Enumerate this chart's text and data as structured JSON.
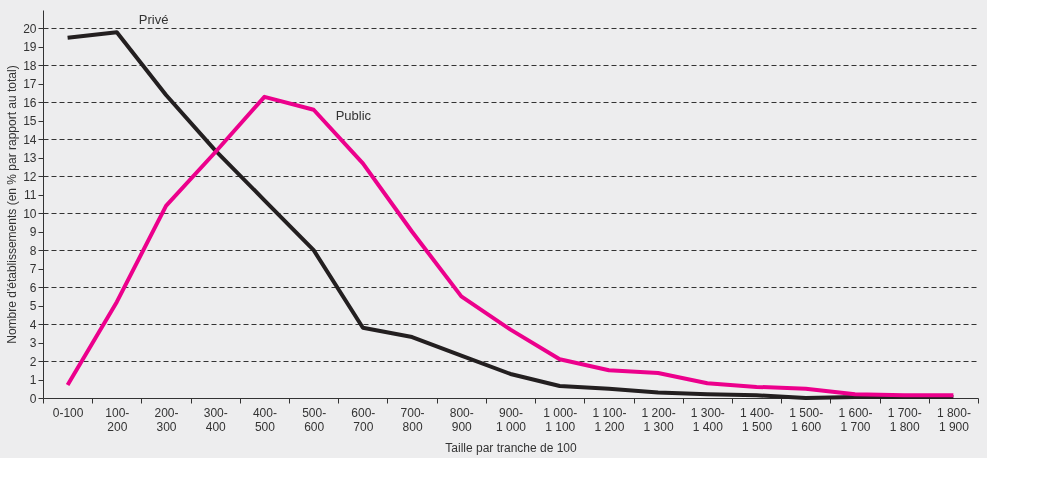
{
  "chart_data": {
    "type": "line",
    "xlabel": "Taille par tranche de 100",
    "ylabel": "Nombre d'établissements (en % par rapport au total)",
    "categories": [
      "0-100",
      "100-\n200",
      "200-\n300",
      "300-\n400",
      "400-\n500",
      "500-\n600",
      "600-\n700",
      "700-\n800",
      "800-\n900",
      "900-\n1 000",
      "1 000-\n1 100",
      "1 100-\n1 200",
      "1 200-\n1 300",
      "1 300-\n1 400",
      "1 400-\n1 500",
      "1 500-\n1 600",
      "1 600-\n1 700",
      "1 700-\n1 800",
      "1 800-\n1 900"
    ],
    "series": [
      {
        "name": "Privé",
        "color": "#231f20",
        "values": [
          19.5,
          19.8,
          16.4,
          13.4,
          10.7,
          8.0,
          3.8,
          3.3,
          2.3,
          1.3,
          0.65,
          0.5,
          0.3,
          0.2,
          0.15,
          0.0,
          0.05,
          0.05,
          0.05
        ]
      },
      {
        "name": "Public",
        "color": "#ec008c",
        "values": [
          0.7,
          5.2,
          10.4,
          13.3,
          16.3,
          15.6,
          12.7,
          9.0,
          5.5,
          3.7,
          2.1,
          1.5,
          1.35,
          0.8,
          0.6,
          0.5,
          0.2,
          0.15,
          0.15
        ]
      }
    ],
    "ylim": [
      0,
      21
    ],
    "yticks": [
      0,
      1,
      2,
      3,
      4,
      5,
      6,
      7,
      8,
      9,
      10,
      11,
      12,
      13,
      14,
      15,
      16,
      17,
      18,
      19,
      20
    ],
    "grid": "y",
    "marker": "none",
    "line_style": "solid"
  }
}
